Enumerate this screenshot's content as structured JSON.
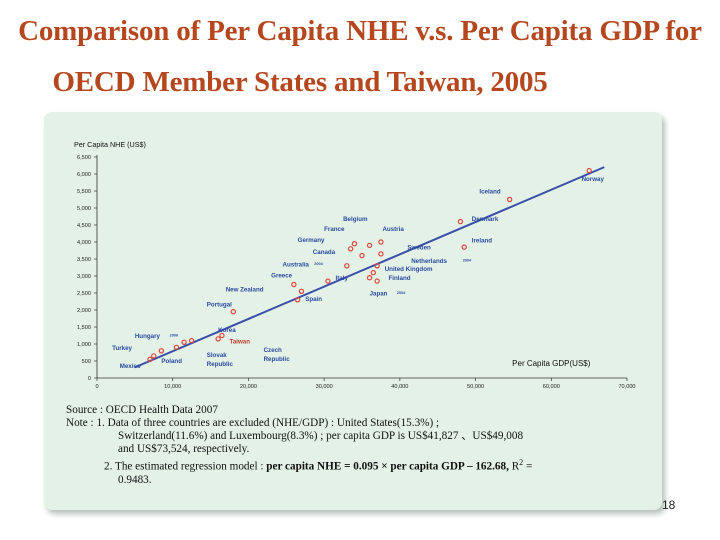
{
  "slide": {
    "title_line1": "Comparison of Per Capita NHE v.s. Per Capita GDP for",
    "title_line2": "OECD Member States and Taiwan, 2005",
    "page_number": "18"
  },
  "notes": {
    "source": "Source : OECD Health Data 2007",
    "note1_line1": "Note : 1. Data of three countries are excluded (NHE/GDP) : United States(15.3%) ;",
    "note1_line2": "Switzerland(11.6%) and Luxembourg(8.3%) ; per capita GDP is US$41,827 、US$49,008",
    "note1_line3": "and US$73,524, respectively.",
    "note2_prefix": "2. The estimated regression model : ",
    "note2_model": "per capita NHE = 0.095 × per capita GDP – 162.68,",
    "note2_r2_label": "R",
    "note2_r2_sup": "2",
    "note2_r2_eq": " =",
    "note2_line2": "0.9483."
  },
  "chart_data": {
    "type": "scatter",
    "ylabel": "Per Capita NHE (US$)",
    "xlabel": "Per Capita GDP(US$)",
    "xlim": [
      0,
      70000
    ],
    "ylim": [
      0,
      6500
    ],
    "x_ticks": [
      "0",
      "10,000",
      "20,000",
      "30,000",
      "40,000",
      "50,000",
      "60,000",
      "70,000"
    ],
    "y_ticks": [
      "0",
      "500",
      "1,000",
      "1,500",
      "2,000",
      "2,500",
      "3,000",
      "3,500",
      "4,000",
      "4,500",
      "5,000",
      "5,500",
      "6,000",
      "6,500"
    ],
    "regression": {
      "slope": 0.095,
      "intercept": -162.68,
      "x_range": [
        5000,
        67000
      ]
    },
    "point_color": "#e0453a",
    "line_color": "#3a4fa8",
    "label_color": "#2a4aa0",
    "points": [
      {
        "name": "Norway",
        "x": 65000,
        "y": 6100
      },
      {
        "name": "Iceland",
        "x": 54500,
        "y": 5250
      },
      {
        "name": "Denmark",
        "x": 48000,
        "y": 4600
      },
      {
        "name": "Ireland",
        "x": 48500,
        "y": 3850
      },
      {
        "name": "Belgium",
        "x": 36000,
        "y": 3900
      },
      {
        "name": "France",
        "x": 34000,
        "y": 3950
      },
      {
        "name": "Austria",
        "x": 37500,
        "y": 4000
      },
      {
        "name": "Germany",
        "x": 33500,
        "y": 3800
      },
      {
        "name": "Canada",
        "x": 35000,
        "y": 3600
      },
      {
        "name": "Sweden",
        "x": 37500,
        "y": 3650
      },
      {
        "name": "Australia",
        "x": 33000,
        "y": 3300
      },
      {
        "name": "Netherlands",
        "x": 37000,
        "y": 3300
      },
      {
        "name": "United Kingdom",
        "x": 36500,
        "y": 3100
      },
      {
        "name": "Greece",
        "x": 26000,
        "y": 2750
      },
      {
        "name": "Italy",
        "x": 30500,
        "y": 2850
      },
      {
        "name": "Finland",
        "x": 36000,
        "y": 2950
      },
      {
        "name": "Japan",
        "x": 37000,
        "y": 2850
      },
      {
        "name": "New Zealand",
        "x": 27000,
        "y": 2550
      },
      {
        "name": "Spain",
        "x": 26500,
        "y": 2300
      },
      {
        "name": "Portugal",
        "x": 18000,
        "y": 1950
      },
      {
        "name": "Korea",
        "x": 16500,
        "y": 1250
      },
      {
        "name": "Taiwan",
        "x": 16000,
        "y": 1150
      },
      {
        "name": "Hungary",
        "x": 11500,
        "y": 1050
      },
      {
        "name": "Czech Republic",
        "x": 12500,
        "y": 1100
      },
      {
        "name": "Slovak Republic",
        "x": 10500,
        "y": 900
      },
      {
        "name": "Poland",
        "x": 8500,
        "y": 800
      },
      {
        "name": "Turkey",
        "x": 7500,
        "y": 650
      },
      {
        "name": "Mexico",
        "x": 7000,
        "y": 550
      }
    ],
    "labels": [
      {
        "text": "Norway",
        "x": 64000,
        "y": 5800
      },
      {
        "text": "Iceland",
        "x": 50500,
        "y": 5420
      },
      {
        "text": "Denmark",
        "x": 49500,
        "y": 4620
      },
      {
        "text": "Belgium",
        "x": 32500,
        "y": 4620
      },
      {
        "text": "France",
        "x": 30000,
        "y": 4320
      },
      {
        "text": "Austria",
        "x": 37700,
        "y": 4320
      },
      {
        "text": "Germany",
        "x": 26500,
        "y": 4000
      },
      {
        "text": "Ireland",
        "x": 49500,
        "y": 3980
      },
      {
        "text": "Canada",
        "x": 28500,
        "y": 3650
      },
      {
        "text": "Sweden",
        "x": 41000,
        "y": 3780
      },
      {
        "text": "Australia",
        "x": 24500,
        "y": 3280
      },
      {
        "text": "Netherlands",
        "x": 41500,
        "y": 3380
      },
      {
        "text": "United Kingdom",
        "x": 38000,
        "y": 3150
      },
      {
        "text": "Greece",
        "x": 23000,
        "y": 2960
      },
      {
        "text": "Italy",
        "x": 31500,
        "y": 2880
      },
      {
        "text": "Finland",
        "x": 38500,
        "y": 2880
      },
      {
        "text": "New Zealand",
        "x": 17000,
        "y": 2550
      },
      {
        "text": "Japan",
        "x": 36000,
        "y": 2430
      },
      {
        "text": "Spain",
        "x": 27500,
        "y": 2270
      },
      {
        "text": "Portugal",
        "x": 14500,
        "y": 2100
      },
      {
        "text": "Korea",
        "x": 16000,
        "y": 1350
      },
      {
        "text": "Hungary",
        "x": 5000,
        "y": 1180
      },
      {
        "text": "Taiwan",
        "x": 17500,
        "y": 1010
      },
      {
        "text": "Turkey",
        "x": 2000,
        "y": 830
      },
      {
        "text": "Czech",
        "x": 22000,
        "y": 760
      },
      {
        "text": "Republic",
        "x": 22000,
        "y": 500
      },
      {
        "text": "Slovak",
        "x": 14500,
        "y": 620
      },
      {
        "text": "Republic",
        "x": 14500,
        "y": 360
      },
      {
        "text": "Poland",
        "x": 8500,
        "y": 440
      },
      {
        "text": "Mexico",
        "x": 3000,
        "y": 300
      }
    ],
    "superscripts": [
      {
        "text": "2004",
        "x": 28700,
        "y": 3320
      },
      {
        "text": "2004",
        "x": 48300,
        "y": 3420
      },
      {
        "text": "2004",
        "x": 39600,
        "y": 2470
      },
      {
        "text": "2006",
        "x": 9600,
        "y": 1220
      }
    ]
  }
}
